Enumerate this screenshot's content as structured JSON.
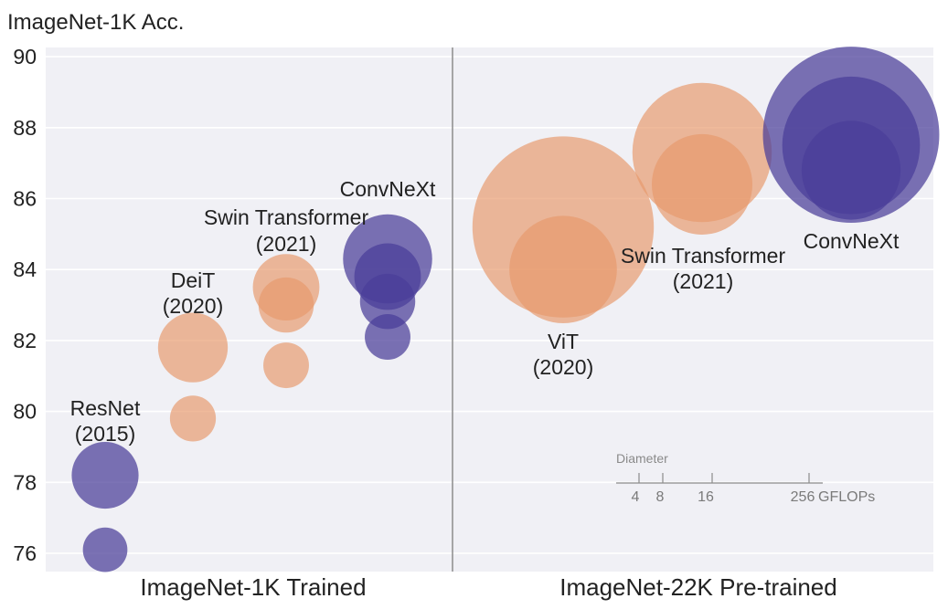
{
  "colors": {
    "cnn": "#4a3d98",
    "transformer": "#e89a6c",
    "plot_bg": "#f0f0f5",
    "grid": "#ffffff",
    "divider": "#8c8c8c",
    "legend": "#8a8a8a"
  },
  "chart_data": {
    "type": "scatter",
    "title": "",
    "ylabel": "ImageNet-1K Acc.",
    "ylim": [
      75.5,
      90.3
    ],
    "yticks": [
      76,
      78,
      80,
      82,
      84,
      86,
      88,
      90
    ],
    "yticks_labels": [
      "76",
      "78",
      "80",
      "82",
      "84",
      "86",
      "88",
      "90"
    ],
    "grid": true,
    "panels": [
      {
        "name": "ImageNet-1K Trained",
        "groups": [
          {
            "name": "ResNet",
            "year": "(2015)",
            "family": "cnn",
            "points": [
              {
                "acc": 76.1,
                "gflops": 4.1
              },
              {
                "acc": 78.2,
                "gflops": 15.6
              }
            ]
          },
          {
            "name": "DeiT",
            "year": "(2020)",
            "family": "transformer",
            "points": [
              {
                "acc": 79.8,
                "gflops": 4.6
              },
              {
                "acc": 81.8,
                "gflops": 17.6
              }
            ]
          },
          {
            "name": "Swin Transformer",
            "year": "(2021)",
            "family": "transformer",
            "points": [
              {
                "acc": 81.3,
                "gflops": 4.5
              },
              {
                "acc": 83.0,
                "gflops": 8.7
              },
              {
                "acc": 83.5,
                "gflops": 15.4
              }
            ]
          },
          {
            "name": "ConvNeXt",
            "year": "",
            "family": "cnn",
            "points": [
              {
                "acc": 82.1,
                "gflops": 4.5
              },
              {
                "acc": 83.1,
                "gflops": 8.7
              },
              {
                "acc": 83.8,
                "gflops": 15.4
              },
              {
                "acc": 84.3,
                "gflops": 34.4
              }
            ]
          }
        ]
      },
      {
        "name": "ImageNet-22K Pre-trained",
        "groups": [
          {
            "name": "ViT",
            "year": "(2020)",
            "family": "transformer",
            "points": [
              {
                "acc": 84.0,
                "gflops": 55.5
              },
              {
                "acc": 85.2,
                "gflops": 190.7
              }
            ]
          },
          {
            "name": "Swin Transformer",
            "year": "(2021)",
            "family": "transformer",
            "points": [
              {
                "acc": 86.4,
                "gflops": 47.0
              },
              {
                "acc": 87.3,
                "gflops": 103.9
              }
            ]
          },
          {
            "name": "ConvNeXt",
            "year": "",
            "family": "cnn",
            "points": [
              {
                "acc": 86.8,
                "gflops": 45.1
              },
              {
                "acc": 87.5,
                "gflops": 101.0
              },
              {
                "acc": 87.8,
                "gflops": 179.0
              }
            ]
          }
        ]
      }
    ],
    "size_legend": {
      "title": "Diameter",
      "ticks": [
        "4",
        "8",
        "16",
        "256"
      ],
      "unit": "GFLOPs"
    }
  }
}
